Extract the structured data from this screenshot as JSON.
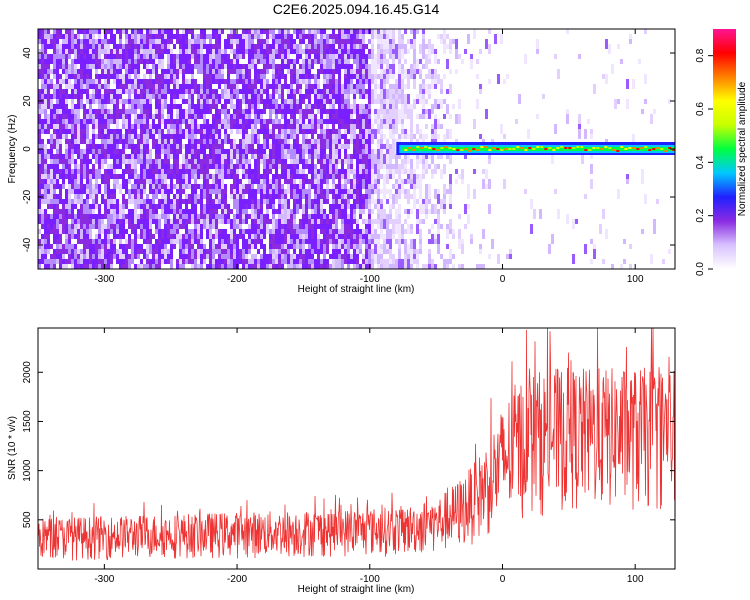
{
  "title": "C2E6.2025.094.16.45.G14",
  "chart_data": [
    {
      "type": "heatmap",
      "xlabel": "Height of straight line (km)",
      "ylabel": "Frequency (Hz)",
      "xlim": [
        -350,
        130
      ],
      "ylim": [
        -50,
        50
      ],
      "xticks": [
        -300,
        -200,
        -100,
        0,
        100
      ],
      "yticks": [
        -40,
        -20,
        0,
        20,
        40
      ],
      "xtick_labels": [
        "-300",
        "-200",
        "-100",
        "0",
        "100"
      ],
      "ytick_labels": [
        "-40",
        "-20",
        "0",
        "20",
        "40"
      ],
      "noise_region_km": [
        -350,
        -40
      ],
      "signal_onset_km": -80,
      "signal_frequency_hz": 0,
      "colorbar": {
        "label": "Normalized spectral amplitude",
        "range": [
          0,
          0.9
        ],
        "ticks": [
          0.0,
          0.2,
          0.4,
          0.6,
          0.8
        ],
        "tick_labels": [
          "0.0",
          "0.2",
          "0.4",
          "0.6",
          "0.8"
        ],
        "colormap": [
          "#ffffff",
          "#d8c2ff",
          "#8a2be2",
          "#2020ff",
          "#00c8ff",
          "#00ff40",
          "#c8ff00",
          "#ffff00",
          "#ff8000",
          "#ff0000",
          "#ff1493"
        ]
      }
    },
    {
      "type": "line",
      "xlabel": "Height of straight line (km)",
      "ylabel": "SNR (10 * v/v)",
      "xlim": [
        -350,
        130
      ],
      "ylim": [
        0,
        2450
      ],
      "xticks": [
        -300,
        -200,
        -100,
        0,
        100
      ],
      "yticks": [
        500,
        1000,
        1500,
        2000
      ],
      "xtick_labels": [
        "-300",
        "-200",
        "-100",
        "0",
        "100"
      ],
      "ytick_labels": [
        "500",
        "1000",
        "1500",
        "2000"
      ],
      "color": "#ee3333",
      "envelope": {
        "x": [
          -350,
          -300,
          -250,
          -200,
          -150,
          -100,
          -70,
          -50,
          -40,
          -30,
          -20,
          -10,
          0,
          10,
          20,
          40,
          60,
          80,
          100,
          130
        ],
        "low": [
          80,
          90,
          100,
          100,
          110,
          120,
          130,
          150,
          160,
          200,
          260,
          320,
          380,
          450,
          500,
          550,
          560,
          560,
          560,
          560
        ],
        "high": [
          520,
          540,
          560,
          580,
          600,
          620,
          650,
          720,
          820,
          950,
          1100,
          1350,
          1650,
          1900,
          2000,
          2050,
          2050,
          2050,
          2050,
          2050
        ]
      }
    }
  ]
}
